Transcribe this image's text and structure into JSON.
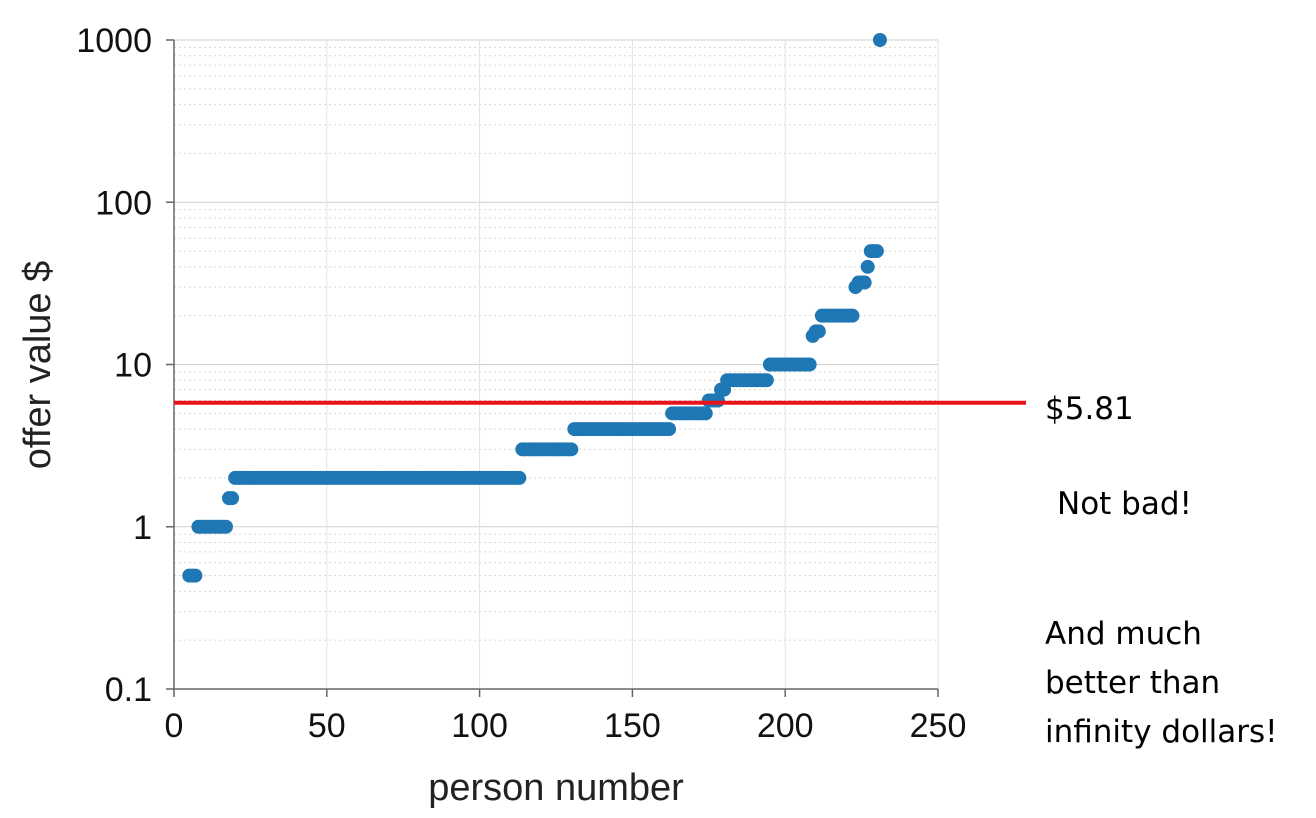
{
  "chart_data": {
    "type": "scatter",
    "title": "",
    "xlabel": "person number",
    "ylabel": "offer value $",
    "xlim": [
      0,
      250
    ],
    "ylim": [
      0.1,
      1000
    ],
    "y_scale": "log",
    "x_ticks": [
      "0",
      "50",
      "100",
      "150",
      "200",
      "250"
    ],
    "y_ticks": [
      "0.1",
      "1",
      "10",
      "100",
      "1000"
    ],
    "grid": true,
    "legend": "none",
    "marker_color": "#1f77b4",
    "reference_line": {
      "value": 5.81,
      "label": "$5.81",
      "color": "#e8141b"
    },
    "points": [
      {
        "x": 5,
        "y": 0.5
      },
      {
        "x": 6,
        "y": 0.5
      },
      {
        "x": 7,
        "y": 0.5
      },
      {
        "x": 8,
        "y": 1
      },
      {
        "x": 9,
        "y": 1
      },
      {
        "x": 10,
        "y": 1
      },
      {
        "x": 11,
        "y": 1
      },
      {
        "x": 12,
        "y": 1
      },
      {
        "x": 13,
        "y": 1
      },
      {
        "x": 14,
        "y": 1
      },
      {
        "x": 15,
        "y": 1
      },
      {
        "x": 16,
        "y": 1
      },
      {
        "x": 17,
        "y": 1
      },
      {
        "x": 18,
        "y": 1.5
      },
      {
        "x": 19,
        "y": 1.5
      },
      {
        "x": 20,
        "y": 2
      },
      {
        "x": 113,
        "y": 2
      },
      {
        "x": 114,
        "y": 3
      },
      {
        "x": 130,
        "y": 3
      },
      {
        "x": 131,
        "y": 4
      },
      {
        "x": 162,
        "y": 4
      },
      {
        "x": 163,
        "y": 5
      },
      {
        "x": 174,
        "y": 5
      },
      {
        "x": 175,
        "y": 6
      },
      {
        "x": 176,
        "y": 6
      },
      {
        "x": 177,
        "y": 6
      },
      {
        "x": 178,
        "y": 6
      },
      {
        "x": 179,
        "y": 7
      },
      {
        "x": 180,
        "y": 7
      },
      {
        "x": 181,
        "y": 8
      },
      {
        "x": 194,
        "y": 8
      },
      {
        "x": 195,
        "y": 10
      },
      {
        "x": 208,
        "y": 10
      },
      {
        "x": 209,
        "y": 15
      },
      {
        "x": 210,
        "y": 16
      },
      {
        "x": 211,
        "y": 16
      },
      {
        "x": 212,
        "y": 20
      },
      {
        "x": 222,
        "y": 20
      },
      {
        "x": 223,
        "y": 30
      },
      {
        "x": 224,
        "y": 32
      },
      {
        "x": 225,
        "y": 32
      },
      {
        "x": 226,
        "y": 32
      },
      {
        "x": 227,
        "y": 40
      },
      {
        "x": 228,
        "y": 50
      },
      {
        "x": 229,
        "y": 50
      },
      {
        "x": 230,
        "y": 50
      },
      {
        "x": 231,
        "y": 1000
      }
    ],
    "annotations": [
      "Not bad!",
      "And much",
      "better than",
      "infinity dollars!"
    ]
  }
}
